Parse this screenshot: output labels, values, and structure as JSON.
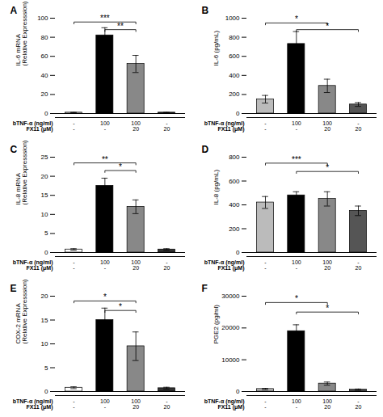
{
  "chart_data": [
    {
      "type": "bar",
      "title": "A",
      "ylabel": "IL-6 mRNA\n(Relative Expresssion)",
      "xlabel": [
        "bTNF-α (ng/ml)",
        "FX11 (μM)"
      ],
      "categories": [
        [
          "-",
          "-"
        ],
        [
          "100",
          "-"
        ],
        [
          "100",
          "20"
        ],
        [
          "-",
          "20"
        ]
      ],
      "values": [
        1,
        82,
        52,
        1
      ],
      "errors": [
        0.3,
        8,
        9,
        0.3
      ],
      "colors": [
        "white",
        "black",
        "#888888",
        "#333333"
      ],
      "ylim": [
        0,
        100
      ],
      "yticks": [
        0,
        20,
        40,
        60,
        80,
        100
      ],
      "annotations": [
        {
          "x1": 0,
          "x2": 2,
          "y": 96,
          "label": "***"
        },
        {
          "x1": 1,
          "x2": 2,
          "y": 88,
          "label": "**"
        }
      ]
    },
    {
      "type": "bar",
      "title": "B",
      "ylabel": "IL-6 (pg/mL)",
      "xlabel": [
        "bTNF-α (ng/ml)",
        "FX11 (μM)"
      ],
      "categories": [
        [
          "-",
          "-"
        ],
        [
          "100",
          "-"
        ],
        [
          "100",
          "20"
        ],
        [
          "-",
          "20"
        ]
      ],
      "values": [
        150,
        730,
        290,
        95
      ],
      "errors": [
        40,
        130,
        70,
        20
      ],
      "colors": [
        "#bbbbbb",
        "black",
        "#888888",
        "#555555"
      ],
      "ylim": [
        0,
        1000
      ],
      "yticks": [
        0,
        200,
        400,
        600,
        800,
        1000
      ],
      "annotations": [
        {
          "x1": 0,
          "x2": 2,
          "y": 950,
          "label": "*"
        },
        {
          "x1": 1,
          "x2": 3,
          "y": 880,
          "label": "*"
        }
      ]
    },
    {
      "type": "bar",
      "title": "C",
      "ylabel": "IL-8 mRNA\n(Relative Expresssion)",
      "xlabel": [
        "bTNF-α (ng/ml)",
        "FX11 (μM)"
      ],
      "categories": [
        [
          "-",
          "-"
        ],
        [
          "100",
          "-"
        ],
        [
          "100",
          "20"
        ],
        [
          "-",
          "20"
        ]
      ],
      "values": [
        0.8,
        17.5,
        12.0,
        0.8
      ],
      "errors": [
        0.2,
        2.0,
        1.8,
        0.2
      ],
      "colors": [
        "white",
        "black",
        "#888888",
        "#333333"
      ],
      "ylim": [
        0,
        25
      ],
      "yticks": [
        0,
        5,
        10,
        15,
        20,
        25
      ],
      "annotations": [
        {
          "x1": 0,
          "x2": 2,
          "y": 23.5,
          "label": "**"
        },
        {
          "x1": 1,
          "x2": 2,
          "y": 21.5,
          "label": "*"
        }
      ]
    },
    {
      "type": "bar",
      "title": "D",
      "ylabel": "IL-8 (pg/mL)",
      "xlabel": [
        "bTNF-α (ng/ml)",
        "FX11 (μM)"
      ],
      "categories": [
        [
          "-",
          "-"
        ],
        [
          "100",
          "-"
        ],
        [
          "100",
          "20"
        ],
        [
          "-",
          "20"
        ]
      ],
      "values": [
        420,
        480,
        450,
        350
      ],
      "errors": [
        50,
        30,
        60,
        40
      ],
      "colors": [
        "#bbbbbb",
        "black",
        "#888888",
        "#555555"
      ],
      "ylim": [
        0,
        800
      ],
      "yticks": [
        0,
        200,
        400,
        600,
        800
      ],
      "annotations": [
        {
          "x1": 0,
          "x2": 2,
          "y": 750,
          "label": "***"
        },
        {
          "x1": 1,
          "x2": 3,
          "y": 680,
          "label": "*"
        }
      ]
    },
    {
      "type": "bar",
      "title": "E",
      "ylabel": "COX-2 mRNA\n(Relative Expresssion)",
      "xlabel": [
        "bTNF-α (ng/ml)",
        "FX11 (μM)"
      ],
      "categories": [
        [
          "-",
          "-"
        ],
        [
          "100",
          "-"
        ],
        [
          "100",
          "20"
        ],
        [
          "-",
          "20"
        ]
      ],
      "values": [
        0.8,
        15.0,
        9.5,
        0.7
      ],
      "errors": [
        0.2,
        2.5,
        3.0,
        0.2
      ],
      "colors": [
        "white",
        "black",
        "#888888",
        "#333333"
      ],
      "ylim": [
        0,
        20
      ],
      "yticks": [
        0,
        5,
        10,
        15,
        20
      ],
      "annotations": [
        {
          "x1": 0,
          "x2": 2,
          "y": 19.0,
          "label": "*"
        },
        {
          "x1": 1,
          "x2": 2,
          "y": 17.0,
          "label": "*"
        }
      ]
    },
    {
      "type": "bar",
      "title": "F",
      "ylabel": "PGE2 (pg/ml)",
      "xlabel": [
        "bTNF-α (ng/ml)",
        "FX11 (μM)"
      ],
      "categories": [
        [
          "-",
          "-"
        ],
        [
          "100",
          "-"
        ],
        [
          "100",
          "20"
        ],
        [
          "-",
          "20"
        ]
      ],
      "values": [
        800,
        19000,
        2500,
        600
      ],
      "errors": [
        200,
        2000,
        500,
        200
      ],
      "colors": [
        "#bbbbbb",
        "black",
        "#888888",
        "#555555"
      ],
      "ylim": [
        0,
        30000
      ],
      "yticks": [
        0,
        10000,
        20000,
        30000
      ],
      "annotations": [
        {
          "x1": 0,
          "x2": 2,
          "y": 28000,
          "label": "*"
        },
        {
          "x1": 1,
          "x2": 3,
          "y": 25000,
          "label": "*"
        }
      ]
    }
  ]
}
